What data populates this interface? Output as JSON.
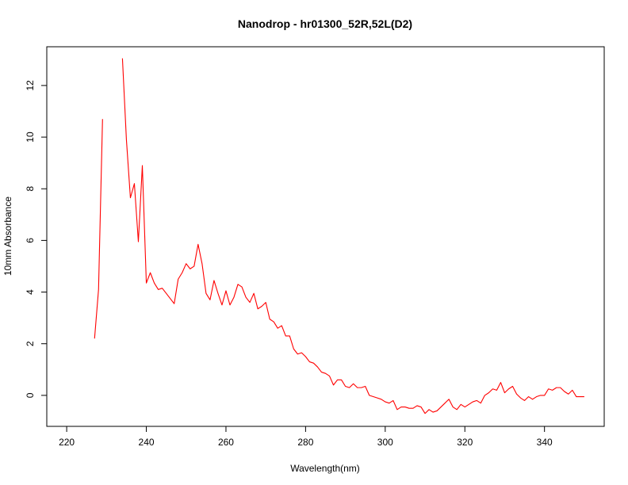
{
  "chart_data": {
    "type": "line",
    "title": "Nanodrop - hr01300_52R,52L(D2)",
    "xlabel": "Wavelength(nm)",
    "ylabel": "10mm Absorbance",
    "xlim": [
      215,
      355
    ],
    "ylim": [
      -1.2,
      13.5
    ],
    "x_ticks": [
      220,
      240,
      260,
      280,
      300,
      320,
      340
    ],
    "y_ticks": [
      0,
      2,
      4,
      6,
      8,
      10,
      12
    ],
    "grid": false,
    "legend": "none",
    "series": [
      {
        "color": "#ff0000",
        "segments": [
          {
            "x": [
              227,
              228,
              229
            ],
            "y": [
              2.2,
              4.1,
              10.7
            ]
          },
          {
            "x": [
              234,
              235,
              236,
              237,
              238,
              239,
              240,
              241,
              242,
              243,
              244,
              245,
              246,
              247,
              248,
              249,
              250,
              251,
              252,
              253,
              254,
              255,
              256,
              257,
              258,
              259,
              260,
              261,
              262,
              263,
              264,
              265,
              266,
              267,
              268,
              269,
              270,
              271,
              272,
              273,
              274,
              275,
              276,
              277,
              278,
              279,
              280,
              281,
              282,
              283,
              284,
              285,
              286,
              287,
              288,
              289,
              290,
              291,
              292,
              293,
              294,
              295,
              296,
              297,
              298,
              299,
              300,
              301,
              302,
              303,
              304,
              305,
              306,
              307,
              308,
              309,
              310,
              311,
              312,
              313,
              314,
              315,
              316,
              317,
              318,
              319,
              320,
              321,
              322,
              323,
              324,
              325,
              326,
              327,
              328,
              329,
              330,
              331,
              332,
              333,
              334,
              335,
              336,
              337,
              338,
              339,
              340,
              341,
              342,
              343,
              344,
              345,
              346,
              347,
              348,
              349,
              350
            ],
            "y": [
              13.05,
              9.9,
              7.65,
              8.2,
              5.95,
              8.9,
              4.35,
              4.75,
              4.35,
              4.1,
              4.15,
              3.95,
              3.75,
              3.55,
              4.5,
              4.75,
              5.1,
              4.9,
              5.0,
              5.85,
              5.1,
              3.95,
              3.7,
              4.45,
              3.95,
              3.5,
              4.05,
              3.5,
              3.8,
              4.3,
              4.2,
              3.8,
              3.6,
              3.95,
              3.35,
              3.45,
              3.6,
              2.95,
              2.85,
              2.6,
              2.7,
              2.3,
              2.3,
              1.8,
              1.6,
              1.65,
              1.5,
              1.3,
              1.25,
              1.1,
              0.9,
              0.85,
              0.75,
              0.4,
              0.6,
              0.6,
              0.35,
              0.3,
              0.45,
              0.3,
              0.3,
              0.35,
              0.0,
              -0.05,
              -0.1,
              -0.15,
              -0.25,
              -0.3,
              -0.2,
              -0.55,
              -0.45,
              -0.45,
              -0.5,
              -0.5,
              -0.4,
              -0.45,
              -0.7,
              -0.55,
              -0.65,
              -0.6,
              -0.45,
              -0.3,
              -0.15,
              -0.45,
              -0.55,
              -0.35,
              -0.45,
              -0.35,
              -0.25,
              -0.2,
              -0.3,
              0.0,
              0.1,
              0.25,
              0.2,
              0.5,
              0.1,
              0.25,
              0.35,
              0.05,
              -0.1,
              -0.2,
              -0.05,
              -0.15,
              -0.05,
              0.0,
              0.0,
              0.25,
              0.2,
              0.3,
              0.3,
              0.15,
              0.05,
              0.2,
              -0.05,
              -0.05,
              -0.05
            ]
          }
        ]
      }
    ]
  }
}
